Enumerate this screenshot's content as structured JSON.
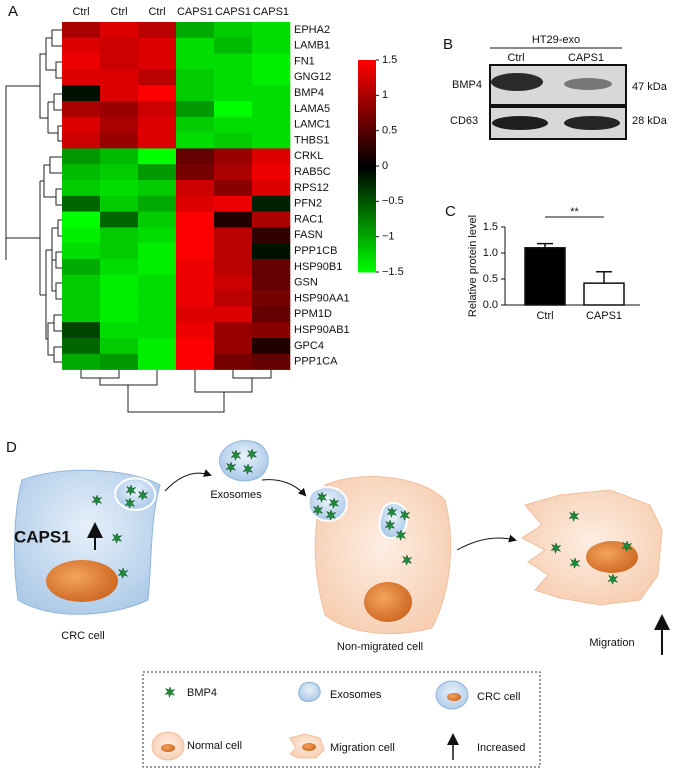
{
  "chart_data": [
    {
      "type": "heatmap",
      "columns": [
        "Ctrl",
        "Ctrl",
        "Ctrl",
        "CAPS1",
        "CAPS1",
        "CAPS1"
      ],
      "rows": [
        "EPHA2",
        "LAMB1",
        "FN1",
        "GNG12",
        "BMP4",
        "LAMA5",
        "LAMC1",
        "THBS1",
        "CRKL",
        "RAB5C",
        "RPS12",
        "PFN2",
        "RAC1",
        "FASN",
        "PPP1CB",
        "HSP90B1",
        "GSN",
        "HSP90AA1",
        "PPM1D",
        "HSP90AB1",
        "GPC4",
        "PPP1CA"
      ],
      "values": [
        [
          1.0,
          1.3,
          1.1,
          -1.0,
          -1.2,
          -1.3
        ],
        [
          1.3,
          1.2,
          1.3,
          -1.3,
          -1.1,
          -1.3
        ],
        [
          1.4,
          1.2,
          1.3,
          -1.3,
          -1.3,
          -1.4
        ],
        [
          1.3,
          1.3,
          1.1,
          -1.2,
          -1.3,
          -1.4
        ],
        [
          -0.1,
          1.3,
          1.5,
          -1.2,
          -1.3,
          -1.3
        ],
        [
          1.0,
          0.9,
          1.2,
          -0.9,
          -1.5,
          -1.3
        ],
        [
          1.3,
          1.0,
          1.3,
          -1.2,
          -1.3,
          -1.3
        ],
        [
          1.2,
          0.9,
          1.3,
          -1.3,
          -1.2,
          -1.3
        ],
        [
          -0.9,
          -1.1,
          -1.5,
          0.6,
          0.9,
          1.3
        ],
        [
          -1.1,
          -1.2,
          -0.9,
          0.7,
          1.0,
          1.4
        ],
        [
          -1.2,
          -1.3,
          -1.2,
          1.2,
          0.8,
          1.3
        ],
        [
          -0.6,
          -1.2,
          -1.0,
          1.3,
          1.4,
          -0.2
        ],
        [
          -1.5,
          -0.6,
          -1.2,
          1.5,
          0.2,
          1.0
        ],
        [
          -1.4,
          -1.2,
          -1.3,
          1.5,
          1.1,
          0.3
        ],
        [
          -1.3,
          -1.2,
          -1.4,
          1.5,
          1.1,
          -0.1
        ],
        [
          -1.0,
          -1.3,
          -1.4,
          1.4,
          1.1,
          0.6
        ],
        [
          -1.2,
          -1.4,
          -1.3,
          1.4,
          1.2,
          0.6
        ],
        [
          -1.2,
          -1.4,
          -1.3,
          1.4,
          1.1,
          0.7
        ],
        [
          -1.2,
          -1.4,
          -1.3,
          1.3,
          1.3,
          0.6
        ],
        [
          -0.4,
          -1.3,
          -1.3,
          1.4,
          0.9,
          0.8
        ],
        [
          -0.6,
          -1.2,
          -1.4,
          1.5,
          0.9,
          0.2
        ],
        [
          -1.0,
          -0.9,
          -1.4,
          1.5,
          0.7,
          0.6
        ]
      ],
      "colorbar": {
        "lim": [
          -1.5,
          1.5
        ],
        "colors": [
          "#00ff00",
          "#000000",
          "#ff0000"
        ],
        "ticks": [
          1.5,
          1,
          0.5,
          0,
          {
            "value": -0.5,
            "label": "−0.5"
          },
          {
            "value": -1,
            "label": "−1"
          },
          {
            "value": -1.5,
            "label": "−1.5"
          }
        ]
      }
    },
    {
      "type": "bar",
      "ylabel": "Relative protein level",
      "annotation": "**",
      "categories": [
        "Ctrl",
        "CAPS1"
      ],
      "values": [
        1.1,
        0.42
      ],
      "errors": [
        0.08,
        0.22
      ],
      "colors": [
        "#000000",
        "#ffffff"
      ],
      "ylim": [
        0,
        1.5
      ],
      "yticks": [
        {
          "value": 0,
          "label": "0.0"
        },
        {
          "value": 0.5,
          "label": "0.5"
        },
        {
          "value": 1,
          "label": "1.0"
        },
        {
          "value": 1.5,
          "label": "1.5"
        }
      ]
    }
  ],
  "panel_labels": [
    "A",
    "B",
    "C",
    "D"
  ],
  "blot": {
    "title": "HT29-exo",
    "lanes": [
      "Ctrl",
      "CAPS1"
    ],
    "proteins": [
      "BMP4",
      "CD63"
    ],
    "sizes": [
      "47 kDa",
      "28 kDa"
    ]
  },
  "diagram": {
    "marker": "CAPS1",
    "cell_labels": [
      "CRC cell",
      "Exosomes",
      "Non-migrated cell",
      "Migration"
    ],
    "legend": [
      "BMP4",
      "Exosomes",
      "CRC cell",
      "Normal cell",
      "Migration cell",
      "Increased"
    ]
  }
}
